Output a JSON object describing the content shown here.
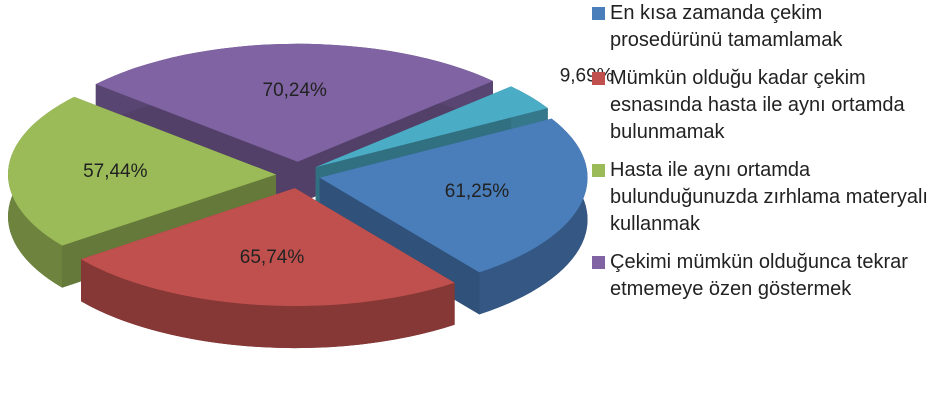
{
  "chart_data": {
    "type": "pie",
    "categories": [
      "En kısa zamanda çekim prosedürünü tamamlamak",
      "Mümkün olduğu kadar çekim esnasında hasta ile aynı ortamda bulunmamak",
      "Hasta ile aynı ortamda bulunduğunuzda zırhlama materyalı kullanmak",
      "Çekimi mümkün olduğunca tekrar etmemeye özen göstermek",
      null
    ],
    "values": [
      61.25,
      65.74,
      57.44,
      70.24,
      9.69
    ],
    "value_labels": [
      "61,25%",
      "65,74%",
      "57,44%",
      "70,24%",
      "9,69%"
    ],
    "colors": [
      "#4a7ebb",
      "#c0504d",
      "#9bbb59",
      "#7f63a2",
      "#4bacc6"
    ]
  }
}
